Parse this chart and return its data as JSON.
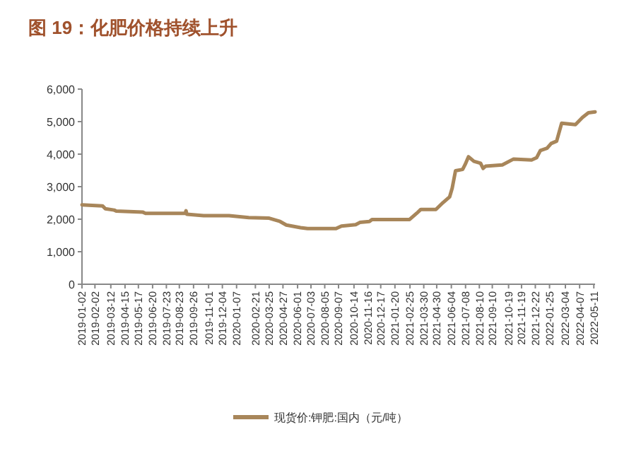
{
  "chart_data": {
    "type": "line",
    "title": "图 19：化肥价格持续上升",
    "x": [
      "2019-01-02",
      "2019-02-20",
      "2019-02-27",
      "2019-03-20",
      "2019-03-25",
      "2019-05-27",
      "2019-06-03",
      "2019-09-06",
      "2019-09-08",
      "2019-09-10",
      "2019-10-20",
      "2019-12-20",
      "2020-02-05",
      "2020-03-25",
      "2020-04-20",
      "2020-05-05",
      "2020-06-08",
      "2020-06-25",
      "2020-09-01",
      "2020-09-14",
      "2020-10-18",
      "2020-10-28",
      "2020-11-20",
      "2020-11-26",
      "2021-02-24",
      "2021-03-13",
      "2021-03-23",
      "2021-04-28",
      "2021-05-15",
      "2021-05-31",
      "2021-06-06",
      "2021-06-14",
      "2021-07-01",
      "2021-07-07",
      "2021-07-15",
      "2021-07-28",
      "2021-08-13",
      "2021-08-19",
      "2021-08-25",
      "2021-10-04",
      "2021-10-31",
      "2021-12-13",
      "2021-12-25",
      "2022-01-03",
      "2022-01-19",
      "2022-01-29",
      "2022-02-11",
      "2022-02-23",
      "2022-03-28",
      "2022-04-14",
      "2022-04-28",
      "2022-05-14"
    ],
    "series": [
      {
        "name": "现货价:钾肥:国内（元/吨）",
        "color": "#a8865a",
        "values": [
          2440,
          2410,
          2320,
          2280,
          2250,
          2220,
          2180,
          2180,
          2260,
          2150,
          2110,
          2110,
          2050,
          2030,
          1930,
          1820,
          1740,
          1710,
          1710,
          1790,
          1830,
          1900,
          1930,
          1990,
          1990,
          2180,
          2300,
          2300,
          2510,
          2690,
          2950,
          3490,
          3530,
          3680,
          3920,
          3780,
          3720,
          3560,
          3630,
          3670,
          3850,
          3820,
          3890,
          4110,
          4180,
          4330,
          4400,
          4950,
          4910,
          5130,
          5270,
          5300
        ]
      }
    ],
    "xlim": [
      "2019-01-02",
      "2022-05-14"
    ],
    "xticks": [
      "2019-01-02",
      "2019-02-02",
      "2019-03-12",
      "2019-04-15",
      "2019-05-17",
      "2019-06-20",
      "2019-07-23",
      "2019-08-23",
      "2019-09-26",
      "2019-11-01",
      "2019-12-04",
      "2020-01-07",
      "2020-02-21",
      "2020-03-25",
      "2020-04-27",
      "2020-06-01",
      "2020-07-03",
      "2020-08-05",
      "2020-09-07",
      "2020-10-14",
      "2020-11-16",
      "2020-12-17",
      "2021-01-20",
      "2021-02-25",
      "2021-03-30",
      "2021-04-30",
      "2021-06-04",
      "2021-07-08",
      "2021-08-10",
      "2021-09-10",
      "2021-10-19",
      "2021-11-19",
      "2021-12-22",
      "2022-01-25",
      "2022-03-04",
      "2022-04-07",
      "2022-05-11"
    ],
    "ylim": [
      0,
      6000
    ],
    "yticks": [
      0,
      {
        "value": 1000,
        "label": "1,000"
      },
      {
        "value": 2000,
        "label": "2,000"
      },
      {
        "value": 3000,
        "label": "3,000"
      },
      {
        "value": 4000,
        "label": "4,000"
      },
      {
        "value": 5000,
        "label": "5,000"
      },
      {
        "value": 6000,
        "label": "6,000"
      }
    ],
    "grid": false,
    "legend": "bottom",
    "marker": "none",
    "line_style": "solid"
  }
}
